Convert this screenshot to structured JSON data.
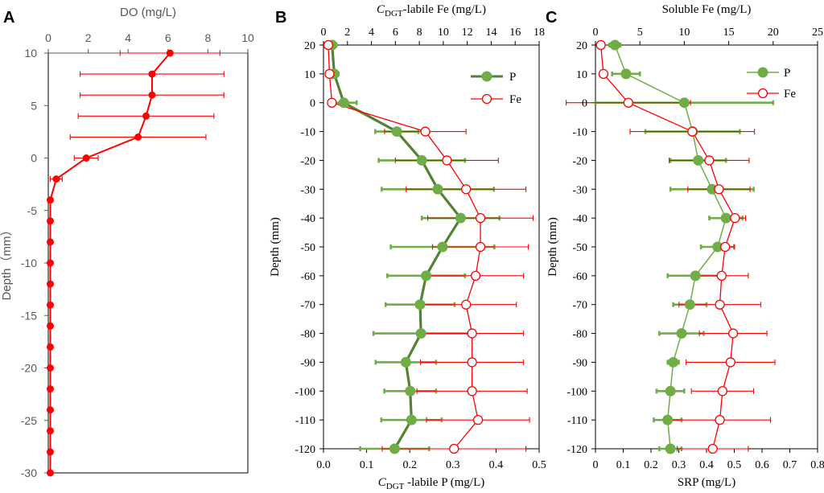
{
  "colors": {
    "do": "#ff0000",
    "p": "#70ad47",
    "p_dark": "#548235",
    "fe": "#ff0000",
    "axis": "#000000",
    "axis_a": "#595959"
  },
  "chart_data": [
    {
      "id": "A",
      "panel_label": "A",
      "type": "line",
      "title": "",
      "top_label": "DO (mg/L)",
      "ylabel": "Depth（mm）",
      "xlim": [
        0,
        10
      ],
      "ylim": [
        -30,
        10
      ],
      "xticks": [
        "0",
        "2",
        "4",
        "6",
        "8",
        "10"
      ],
      "yticks": [
        "10",
        "5",
        "0",
        "-5",
        "-10",
        "-15",
        "-20",
        "-25",
        "-30"
      ],
      "series": [
        {
          "name": "DO",
          "depth": [
            10,
            8,
            6,
            4,
            2,
            0,
            -2,
            -4,
            -6,
            -8,
            -10,
            -12,
            -14,
            -16,
            -18,
            -20,
            -22,
            -24,
            -26,
            -28,
            -30
          ],
          "values": [
            6.1,
            5.2,
            5.2,
            4.9,
            4.5,
            1.9,
            0.4,
            0.1,
            0.1,
            0.1,
            0.1,
            0.1,
            0.1,
            0.1,
            0.1,
            0.1,
            0.1,
            0.1,
            0.1,
            0.1,
            0.1
          ],
          "err": [
            2.5,
            3.6,
            3.6,
            3.4,
            3.4,
            0.6,
            0.3,
            0,
            0,
            0,
            0,
            0,
            0,
            0,
            0,
            0,
            0,
            0,
            0,
            0,
            0
          ]
        }
      ]
    },
    {
      "id": "B",
      "panel_label": "B",
      "type": "line",
      "title": "",
      "top_label_main": "C",
      "top_label_sub": "DGT",
      "top_label_rest": "-labile Fe (mg/L)",
      "bottom_label_main": "C",
      "bottom_label_sub": "DGT",
      "bottom_label_rest": " -labile P (mg/L)",
      "ylabel": "Depth (mm)",
      "top_xlim": [
        0,
        18
      ],
      "bottom_xlim": [
        0,
        0.5
      ],
      "ylim": [
        -120,
        20
      ],
      "top_ticks": [
        "0",
        "2",
        "4",
        "6",
        "8",
        "10",
        "12",
        "14",
        "16",
        "18"
      ],
      "bottom_ticks": [
        "0.0",
        "0.1",
        "0.2",
        "0.3",
        "0.4",
        "0.5"
      ],
      "yticks": [
        "20",
        "10",
        "0",
        "-10",
        "-20",
        "-30",
        "-40",
        "-50",
        "-60",
        "-70",
        "-80",
        "-90",
        "-100",
        "-110",
        "-120"
      ],
      "legend": [
        "P",
        "Fe"
      ],
      "series": [
        {
          "name": "P",
          "axis": "bottom",
          "depth": [
            20,
            10,
            0,
            -10,
            -20,
            -30,
            -40,
            -50,
            -60,
            -70,
            -80,
            -90,
            -100,
            -110,
            -120
          ],
          "values": [
            0.02,
            0.025,
            0.047,
            0.17,
            0.228,
            0.265,
            0.318,
            0.276,
            0.238,
            0.224,
            0.226,
            0.191,
            0.201,
            0.204,
            0.165
          ],
          "err": [
            0.01,
            0.01,
            0.03,
            0.05,
            0.1,
            0.13,
            0.09,
            0.12,
            0.09,
            0.08,
            0.11,
            0.07,
            0.06,
            0.07,
            0.08
          ]
        },
        {
          "name": "Fe",
          "axis": "top",
          "depth": [
            20,
            10,
            0,
            -10,
            -20,
            -30,
            -40,
            -50,
            -60,
            -70,
            -80,
            -90,
            -100,
            -110,
            -120
          ],
          "values": [
            0.4,
            0.5,
            0.7,
            8.5,
            10.3,
            11.9,
            13.1,
            13.1,
            12.7,
            11.9,
            12.4,
            12.4,
            12.4,
            12.9,
            10.9
          ],
          "err": [
            0.3,
            0.3,
            0.3,
            3.4,
            4.3,
            5.0,
            4.4,
            4.0,
            4.0,
            4.2,
            4.3,
            4.3,
            4.6,
            4.3,
            6.0
          ]
        }
      ]
    },
    {
      "id": "C",
      "panel_label": "C",
      "type": "line",
      "title": "",
      "top_label": "Soluble Fe (mg/L)",
      "bottom_label": "SRP (mg/L)",
      "ylabel": "Depth (mm)",
      "top_xlim": [
        0,
        25
      ],
      "bottom_xlim": [
        0,
        0.8
      ],
      "ylim": [
        -120,
        20
      ],
      "top_ticks": [
        "0",
        "5",
        "10",
        "15",
        "20",
        "25"
      ],
      "bottom_ticks": [
        "0",
        "0.1",
        "0.2",
        "0.3",
        "0.4",
        "0.5",
        "0.6",
        "0.7",
        "0.8"
      ],
      "yticks": [
        "20",
        "10",
        "0",
        "-10",
        "-20",
        "-30",
        "-40",
        "-50",
        "-60",
        "-70",
        "-80",
        "-90",
        "-100",
        "-110",
        "-120"
      ],
      "legend": [
        "P",
        "Fe"
      ],
      "series": [
        {
          "name": "P",
          "axis": "bottom",
          "depth": [
            20,
            10,
            0,
            -10,
            -20,
            -30,
            -40,
            -50,
            -60,
            -70,
            -80,
            -90,
            -100,
            -110,
            -120
          ],
          "values": [
            0.07,
            0.11,
            0.32,
            0.35,
            0.37,
            0.42,
            0.47,
            0.44,
            0.36,
            0.34,
            0.31,
            0.28,
            0.27,
            0.26,
            0.27
          ],
          "err": [
            0.02,
            0.05,
            0.32,
            0.17,
            0.1,
            0.15,
            0.06,
            0.06,
            0.1,
            0.06,
            0.08,
            0.02,
            0.05,
            0.05,
            0.04
          ]
        },
        {
          "name": "Fe",
          "axis": "top",
          "depth": [
            20,
            10,
            0,
            -10,
            -20,
            -30,
            -40,
            -50,
            -60,
            -70,
            -80,
            -90,
            -100,
            -110,
            -120
          ],
          "values": [
            0.6,
            0.9,
            3.7,
            10.9,
            12.8,
            13.9,
            15.7,
            14.6,
            14.2,
            14.0,
            15.5,
            15.2,
            14.3,
            14.0,
            13.2
          ],
          "err": [
            0.2,
            0.4,
            7.0,
            7.0,
            4.5,
            3.5,
            1.2,
            1.0,
            3.0,
            4.6,
            3.8,
            5.0,
            3.5,
            5.7,
            4.0
          ]
        }
      ]
    }
  ]
}
